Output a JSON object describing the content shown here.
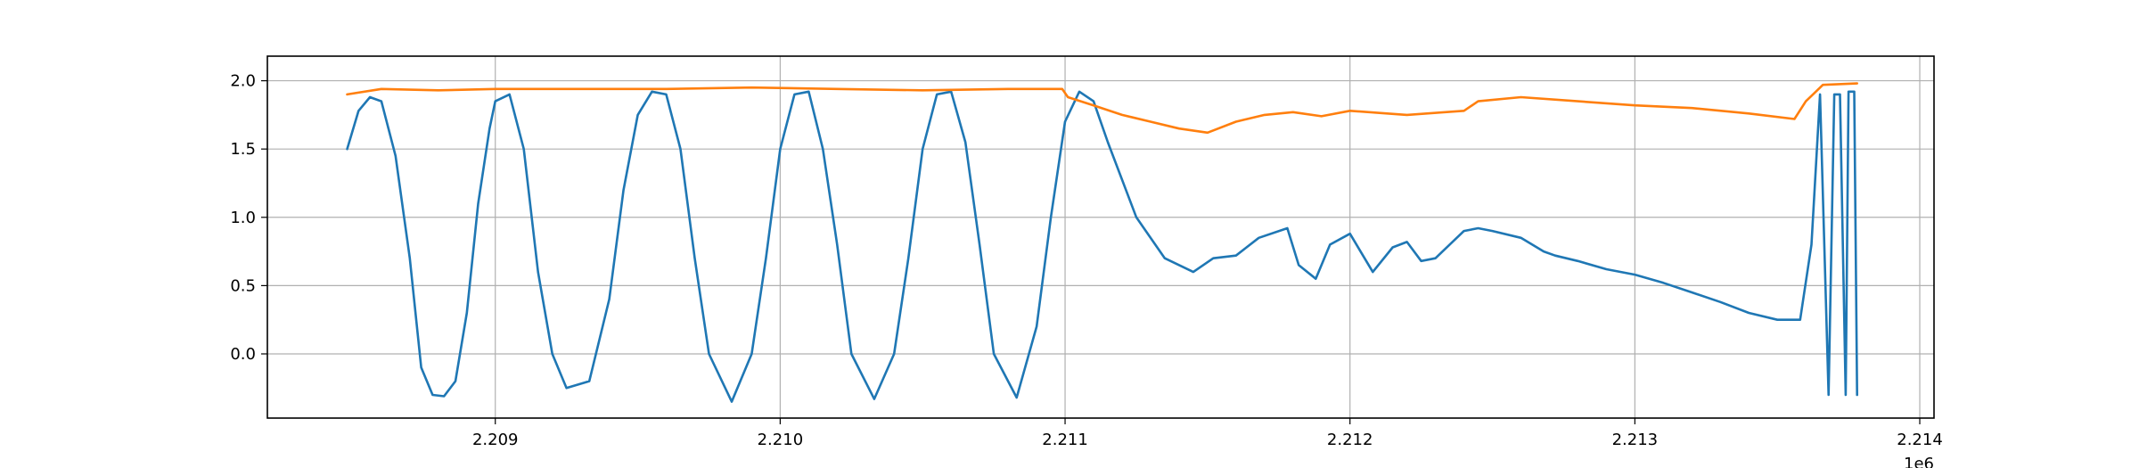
{
  "chart_data": {
    "type": "line",
    "title": "",
    "xlabel": "",
    "ylabel": "",
    "x_offset_label": "1e6",
    "xlim": [
      2208200,
      2214050
    ],
    "ylim": [
      -0.47,
      2.18
    ],
    "x_ticks": [
      2209000,
      2210000,
      2211000,
      2212000,
      2213000,
      2214000
    ],
    "x_tick_labels": [
      "2.209",
      "2.210",
      "2.211",
      "2.212",
      "2.213",
      "2.214"
    ],
    "y_ticks": [
      0.0,
      0.5,
      1.0,
      1.5,
      2.0
    ],
    "y_tick_labels": [
      "0.0",
      "0.5",
      "1.0",
      "1.5",
      "2.0"
    ],
    "grid": true,
    "legend": "none",
    "series": [
      {
        "color": "#1f77b4",
        "x": [
          2208480,
          2208520,
          2208560,
          2208600,
          2208650,
          2208700,
          2208740,
          2208780,
          2208820,
          2208860,
          2208900,
          2208940,
          2208980,
          2209000,
          2209050,
          2209100,
          2209150,
          2209200,
          2209250,
          2209330,
          2209400,
          2209450,
          2209500,
          2209550,
          2209600,
          2209650,
          2209700,
          2209750,
          2209830,
          2209900,
          2209950,
          2210000,
          2210050,
          2210100,
          2210150,
          2210200,
          2210250,
          2210330,
          2210400,
          2210450,
          2210500,
          2210550,
          2210600,
          2210650,
          2210700,
          2210750,
          2210830,
          2210900,
          2210950,
          2211000,
          2211050,
          2211100,
          2211150,
          2211250,
          2211350,
          2211450,
          2211520,
          2211600,
          2211680,
          2211780,
          2211820,
          2211880,
          2211930,
          2212000,
          2212080,
          2212150,
          2212200,
          2212250,
          2212300,
          2212400,
          2212450,
          2212500,
          2212600,
          2212680,
          2212720,
          2212800,
          2212900,
          2213000,
          2213100,
          2213200,
          2213300,
          2213400,
          2213500,
          2213580,
          2213620,
          2213650,
          2213680,
          2213700,
          2213720,
          2213740,
          2213750,
          2213770,
          2213780
        ],
        "y": [
          1.5,
          1.78,
          1.88,
          1.85,
          1.45,
          0.7,
          -0.1,
          -0.3,
          -0.31,
          -0.2,
          0.3,
          1.1,
          1.65,
          1.85,
          1.9,
          1.5,
          0.6,
          0.0,
          -0.25,
          -0.2,
          0.4,
          1.2,
          1.75,
          1.92,
          1.9,
          1.5,
          0.7,
          0.0,
          -0.35,
          0.0,
          0.7,
          1.5,
          1.9,
          1.92,
          1.5,
          0.8,
          0.0,
          -0.33,
          0.0,
          0.7,
          1.5,
          1.9,
          1.92,
          1.55,
          0.8,
          0.0,
          -0.32,
          0.2,
          1.0,
          1.7,
          1.92,
          1.85,
          1.55,
          1.0,
          0.7,
          0.6,
          0.7,
          0.72,
          0.85,
          0.92,
          0.65,
          0.55,
          0.8,
          0.88,
          0.6,
          0.78,
          0.82,
          0.68,
          0.7,
          0.9,
          0.92,
          0.9,
          0.85,
          0.75,
          0.72,
          0.68,
          0.62,
          0.58,
          0.52,
          0.45,
          0.38,
          0.3,
          0.25,
          0.25,
          0.8,
          1.9,
          -0.3,
          1.9,
          1.9,
          -0.3,
          1.92,
          1.92,
          -0.3
        ]
      },
      {
        "color": "#ff7f0e",
        "x": [
          2208480,
          2208600,
          2208800,
          2209000,
          2209300,
          2209600,
          2209900,
          2210200,
          2210500,
          2210800,
          2210990,
          2211010,
          2211100,
          2211200,
          2211300,
          2211400,
          2211500,
          2211600,
          2211700,
          2211800,
          2211900,
          2212000,
          2212200,
          2212400,
          2212450,
          2212600,
          2212800,
          2213000,
          2213200,
          2213400,
          2213560,
          2213600,
          2213660,
          2213780
        ],
        "y": [
          1.9,
          1.94,
          1.93,
          1.94,
          1.94,
          1.94,
          1.95,
          1.94,
          1.93,
          1.94,
          1.94,
          1.88,
          1.82,
          1.75,
          1.7,
          1.65,
          1.62,
          1.7,
          1.75,
          1.77,
          1.74,
          1.78,
          1.75,
          1.78,
          1.85,
          1.88,
          1.85,
          1.82,
          1.8,
          1.76,
          1.72,
          1.85,
          1.97,
          1.98
        ]
      }
    ]
  }
}
